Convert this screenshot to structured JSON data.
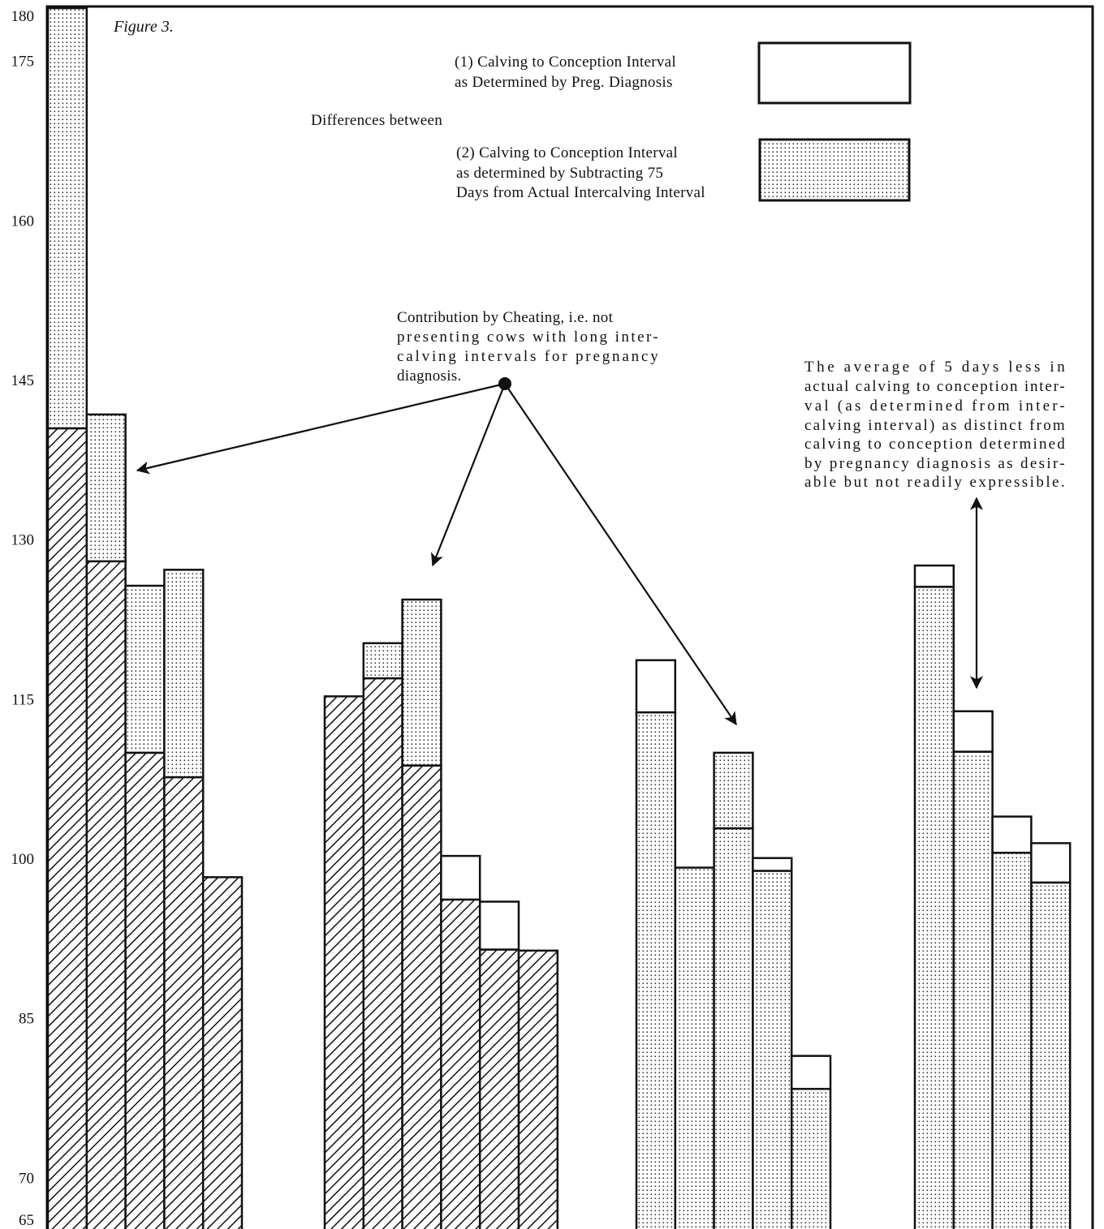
{
  "figure_label": "Figure 3.",
  "legend": {
    "heading": "Differences between",
    "items": [
      {
        "id": "preg",
        "lines": [
          "(1)  Calving to Conception Interval",
          "as Determined by Preg. Diagnosis"
        ],
        "pattern": "open"
      },
      {
        "id": "subtract",
        "lines": [
          "(2)  Calving to Conception Interval",
          "as determined by Subtracting 75",
          "Days from Actual Intercalving Interval"
        ],
        "pattern": "dotted"
      }
    ]
  },
  "annotations": {
    "cheating": [
      "Contribution by Cheating, i.e. not",
      "presenting cows with long inter-",
      "calving intervals for pregnancy",
      "diagnosis."
    ],
    "average": [
      "The average of 5 days less in",
      "actual calving to conception inter-",
      "val (as determined from inter-",
      "calving interval) as distinct from",
      "calving to conception determined",
      "by pregnancy diagnosis as desir-",
      "able but not readily expressible."
    ]
  },
  "colors": {
    "ink": "#111111",
    "background": "#ffffff"
  },
  "chart_data": {
    "type": "bar",
    "title": "",
    "xlabel": "",
    "ylabel": "",
    "ylim": [
      65,
      180
    ],
    "yticks": [
      65,
      70,
      85,
      100,
      115,
      130,
      145,
      160,
      175,
      180
    ],
    "grid": false,
    "legend_position": "top-right",
    "groups": [
      {
        "bars": [
          {
            "lower": 140.5,
            "upper": 180.0,
            "lower_pattern": "hatched",
            "upper_pattern": "dotted"
          },
          {
            "lower": 128.0,
            "upper": 141.8,
            "lower_pattern": "hatched",
            "upper_pattern": "dotted"
          },
          {
            "lower": 110.0,
            "upper": 125.7,
            "lower_pattern": "hatched",
            "upper_pattern": "dotted"
          },
          {
            "lower": 107.7,
            "upper": 127.2,
            "lower_pattern": "hatched",
            "upper_pattern": "dotted"
          },
          {
            "lower": 98.3,
            "upper": 98.3,
            "lower_pattern": "hatched",
            "upper_pattern": "dotted"
          }
        ]
      },
      {
        "bars": [
          {
            "lower": 115.3,
            "upper": 115.3,
            "lower_pattern": "hatched",
            "upper_pattern": "dotted"
          },
          {
            "lower": 117.0,
            "upper": 120.3,
            "lower_pattern": "hatched",
            "upper_pattern": "dotted"
          },
          {
            "lower": 108.8,
            "upper": 124.4,
            "lower_pattern": "hatched",
            "upper_pattern": "dotted"
          },
          {
            "lower": 96.2,
            "upper": 100.3,
            "lower_pattern": "hatched",
            "upper_pattern": "open"
          },
          {
            "lower": 91.5,
            "upper": 96.0,
            "lower_pattern": "hatched",
            "upper_pattern": "open"
          },
          {
            "lower": 91.4,
            "upper": 91.4,
            "lower_pattern": "hatched",
            "upper_pattern": "open"
          }
        ]
      },
      {
        "bars": [
          {
            "lower": 113.8,
            "upper": 118.7,
            "lower_pattern": "dotted",
            "upper_pattern": "open"
          },
          {
            "lower": 99.2,
            "upper": 99.2,
            "lower_pattern": "dotted",
            "upper_pattern": "open"
          },
          {
            "lower": 102.9,
            "upper": 110.0,
            "lower_pattern": "dotted",
            "upper_pattern": "dotted"
          },
          {
            "lower": 98.9,
            "upper": 100.1,
            "lower_pattern": "dotted",
            "upper_pattern": "open"
          },
          {
            "lower": 78.4,
            "upper": 81.5,
            "lower_pattern": "dotted",
            "upper_pattern": "open"
          }
        ]
      },
      {
        "bars": [
          {
            "lower": 125.6,
            "upper": 127.6,
            "lower_pattern": "dotted",
            "upper_pattern": "open"
          },
          {
            "lower": 110.1,
            "upper": 113.9,
            "lower_pattern": "dotted",
            "upper_pattern": "open"
          },
          {
            "lower": 100.6,
            "upper": 104.0,
            "lower_pattern": "dotted",
            "upper_pattern": "open"
          },
          {
            "lower": 97.8,
            "upper": 101.5,
            "lower_pattern": "dotted",
            "upper_pattern": "open"
          }
        ]
      }
    ]
  }
}
